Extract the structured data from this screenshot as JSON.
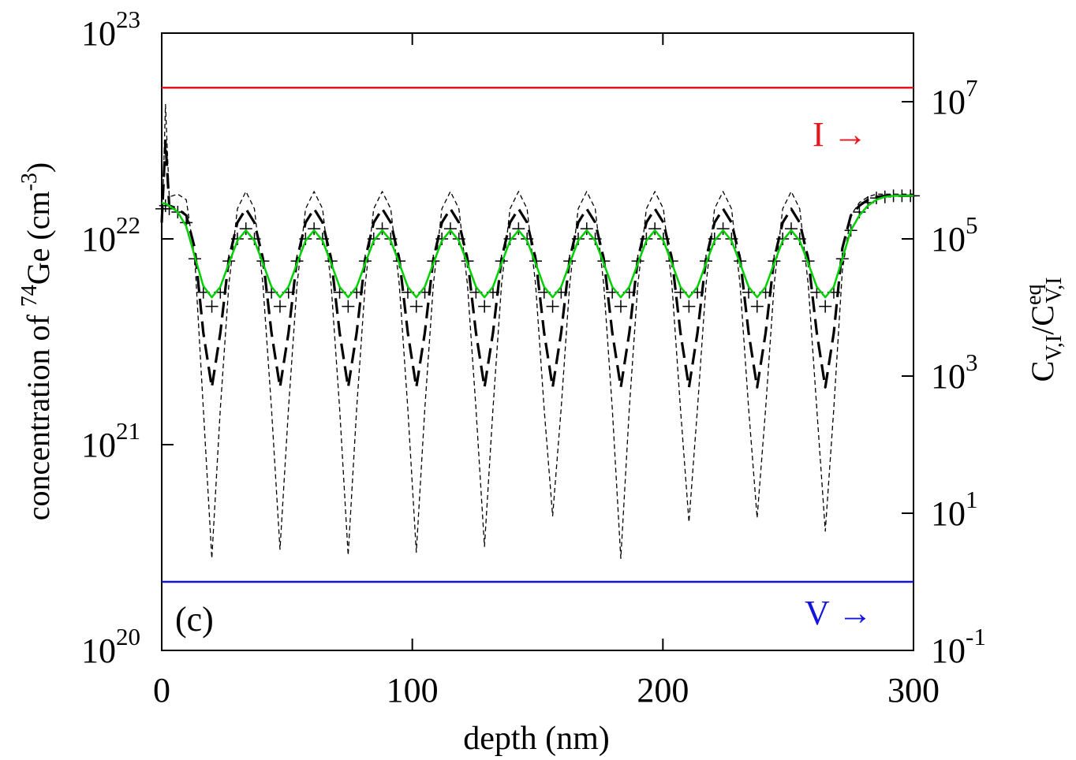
{
  "chart_data": {
    "type": "line",
    "x_label": "depth (nm)",
    "y_label": [
      {
        "text": "concentration of "
      },
      {
        "text": "74",
        "script": "sup"
      },
      {
        "text": "Ge (cm"
      },
      {
        "text": "-3",
        "script": "sup"
      },
      {
        "text": ")"
      }
    ],
    "y2_label": [
      {
        "text": "C"
      },
      {
        "text": "V,I",
        "script": "sub"
      },
      {
        "text": "/C"
      },
      {
        "text": "eq",
        "script": "sup"
      },
      {
        "text": "V,I",
        "script": "sub"
      }
    ],
    "xlim": [
      0,
      300
    ],
    "xticks": [
      0,
      100,
      200,
      300
    ],
    "ylim": [
      1e+20,
      1e+23
    ],
    "y_log": true,
    "yticks": [
      {
        "value": 1e+20,
        "label": "10",
        "exponent": "20"
      },
      {
        "value": 1e+21,
        "label": "10",
        "exponent": "21"
      },
      {
        "value": 1e+22,
        "label": "10",
        "exponent": "22"
      },
      {
        "value": 1e+23,
        "label": "10",
        "exponent": "23"
      }
    ],
    "y2lim": [
      0.1,
      100000000.0
    ],
    "y2_log": true,
    "y2ticks": [
      {
        "value": 0.1,
        "label": "10",
        "exponent": "-1"
      },
      {
        "value": 10,
        "label": "10",
        "exponent": "1"
      },
      {
        "value": 1000,
        "label": "10",
        "exponent": "3"
      },
      {
        "value": 100000,
        "label": "10",
        "exponent": "5"
      },
      {
        "value": 10000000,
        "label": "10",
        "exponent": "7"
      }
    ],
    "annotations": [
      {
        "text": "I →",
        "color": "#e8141c"
      },
      {
        "text": "V →",
        "color": "#1414e0"
      },
      {
        "text": "(c)",
        "color": "#000000"
      }
    ],
    "x": [
      0,
      1.5,
      3.0,
      6.4,
      9.8,
      13.2,
      16.6,
      20,
      23.4,
      26.8,
      30.2,
      33.6,
      37.0,
      40.4,
      43.8,
      47.2,
      50.6,
      54.0,
      57.4,
      60.8,
      64.2,
      67.6,
      71.0,
      74.4,
      77.8,
      81.2,
      84.6,
      88.0,
      91.4,
      94.8,
      98.2,
      101.6,
      105.0,
      108.4,
      111.8,
      115.2,
      118.6,
      122.0,
      125.4,
      128.8,
      132.2,
      135.6,
      139.0,
      142.4,
      145.8,
      149.2,
      152.6,
      156.0,
      159.4,
      162.8,
      166.2,
      169.6,
      173.0,
      176.4,
      179.8,
      183.2,
      186.6,
      190.0,
      193.4,
      196.8,
      200.2,
      203.6,
      207.0,
      210.4,
      213.8,
      217.2,
      220.6,
      224.0,
      227.4,
      230.8,
      234.2,
      237.6,
      241.0,
      244.4,
      247.8,
      251.2,
      254.6,
      258.0,
      261.4,
      264.8,
      268.2,
      271.6,
      275,
      278.4,
      281.8,
      285.2,
      288.6,
      292,
      295.4,
      298.8,
      300
    ],
    "series": [
      {
        "color": "#000000",
        "mark": "dash-short",
        "values": [
          1e+22,
          4.5e+22,
          1.6e+22,
          1.65e+22,
          1.55e+22,
          8e+21,
          1.5e+21,
          2.8e+20,
          1.5e+21,
          6e+21,
          1.4e+22,
          1.7e+22,
          1.4e+22,
          6e+21,
          1.5e+21,
          3.1e+20,
          1.5e+21,
          6e+21,
          1.4e+22,
          1.7e+22,
          1.4e+22,
          6e+21,
          1.5e+21,
          2.9e+20,
          1.5e+21,
          6e+21,
          1.4e+22,
          1.7e+22,
          1.4e+22,
          6e+21,
          1.5e+21,
          3e+20,
          1.5e+21,
          6e+21,
          1.4e+22,
          1.7e+22,
          1.4e+22,
          6e+21,
          1.5e+21,
          3.2e+20,
          1.5e+21,
          6e+21,
          1.4e+22,
          1.7e+22,
          1.4e+22,
          6e+21,
          1.5e+21,
          4.5e+20,
          1.5e+21,
          6e+21,
          1.4e+22,
          1.7e+22,
          1.4e+22,
          6e+21,
          1.5e+21,
          2.8e+20,
          1.5e+21,
          6e+21,
          1.4e+22,
          1.7e+22,
          1.4e+22,
          6e+21,
          1.5e+21,
          4.2e+20,
          1.5e+21,
          6e+21,
          1.4e+22,
          1.7e+22,
          1.4e+22,
          6e+21,
          1.5e+21,
          4.4e+20,
          1.5e+21,
          6e+21,
          1.4e+22,
          1.7e+22,
          1.4e+22,
          6e+21,
          1.5e+21,
          3.8e+20,
          1.5e+21,
          7e+21,
          1.3e+22,
          1.5e+22,
          1.6e+22,
          1.65e+22,
          1.65e+22,
          1.65e+22,
          1.65e+22,
          1.65e+22,
          1.65e+22
        ]
      },
      {
        "color": "#000000",
        "mark": "dash-long",
        "values": [
          1.2e+22,
          3e+22,
          1.45e+22,
          1.4e+22,
          1.3e+22,
          9e+21,
          3.5e+21,
          1.9e+21,
          3.5e+21,
          8e+21,
          1.2e+22,
          1.4e+22,
          1.2e+22,
          8e+21,
          3.5e+21,
          1.9e+21,
          3.5e+21,
          8e+21,
          1.2e+22,
          1.4e+22,
          1.2e+22,
          8e+21,
          3.5e+21,
          1.9e+21,
          3.5e+21,
          8e+21,
          1.2e+22,
          1.4e+22,
          1.2e+22,
          8e+21,
          3.5e+21,
          1.9e+21,
          3.5e+21,
          8e+21,
          1.2e+22,
          1.4e+22,
          1.2e+22,
          8e+21,
          3.5e+21,
          1.9e+21,
          3.5e+21,
          8e+21,
          1.2e+22,
          1.4e+22,
          1.2e+22,
          8e+21,
          3.5e+21,
          1.9e+21,
          3.5e+21,
          8e+21,
          1.2e+22,
          1.4e+22,
          1.2e+22,
          8e+21,
          3.5e+21,
          1.9e+21,
          3.5e+21,
          8e+21,
          1.2e+22,
          1.4e+22,
          1.2e+22,
          8e+21,
          3.5e+21,
          1.9e+21,
          3.5e+21,
          8e+21,
          1.2e+22,
          1.4e+22,
          1.2e+22,
          8e+21,
          3.5e+21,
          1.9e+21,
          3.5e+21,
          8e+21,
          1.2e+22,
          1.4e+22,
          1.2e+22,
          8e+21,
          3.5e+21,
          1.9e+21,
          3.5e+21,
          9e+21,
          1.3e+22,
          1.45e+22,
          1.55e+22,
          1.6e+22,
          1.62e+22,
          1.62e+22,
          1.62e+22,
          1.62e+22,
          1.62e+22
        ]
      },
      {
        "color": "#000000",
        "mark": "plus",
        "values": [
          1.4e+22,
          1.45e+22,
          1.4e+22,
          1.35e+22,
          1.2e+22,
          8e+21,
          5.5e+21,
          4.7e+21,
          5.5e+21,
          7.8e+21,
          1e+22,
          1.12e+22,
          1e+22,
          7.8e+21,
          5.5e+21,
          4.7e+21,
          5.5e+21,
          7.8e+21,
          1e+22,
          1.12e+22,
          1e+22,
          7.8e+21,
          5.5e+21,
          4.7e+21,
          5.5e+21,
          7.8e+21,
          1e+22,
          1.12e+22,
          1e+22,
          7.8e+21,
          5.5e+21,
          4.7e+21,
          5.5e+21,
          7.8e+21,
          1e+22,
          1.12e+22,
          1e+22,
          7.8e+21,
          5.5e+21,
          4.7e+21,
          5.5e+21,
          7.8e+21,
          1e+22,
          1.12e+22,
          1e+22,
          7.8e+21,
          5.5e+21,
          4.7e+21,
          5.5e+21,
          7.8e+21,
          1e+22,
          1.12e+22,
          1e+22,
          7.8e+21,
          5.5e+21,
          4.7e+21,
          5.5e+21,
          7.8e+21,
          1e+22,
          1.12e+22,
          1e+22,
          7.8e+21,
          5.5e+21,
          4.7e+21,
          5.5e+21,
          7.8e+21,
          1e+22,
          1.12e+22,
          1e+22,
          7.8e+21,
          5.5e+21,
          4.7e+21,
          5.5e+21,
          7.8e+21,
          1e+22,
          1.12e+22,
          1e+22,
          7.8e+21,
          5.5e+21,
          4.7e+21,
          5.5e+21,
          8e+21,
          1.1e+22,
          1.35e+22,
          1.5e+22,
          1.58e+22,
          1.6e+22,
          1.62e+22,
          1.62e+22,
          1.62e+22,
          1.62e+22
        ]
      },
      {
        "color": "#00d000",
        "mark": "line",
        "values": [
          1.5e+22,
          1.48e+22,
          1.45e+22,
          1.35e+22,
          1.15e+22,
          8.2e+21,
          5.9e+21,
          5.2e+21,
          5.85e+21,
          7.6e+21,
          9.8e+21,
          1.1e+22,
          9.8e+21,
          7.6e+21,
          5.85e+21,
          5.2e+21,
          5.85e+21,
          7.6e+21,
          9.8e+21,
          1.1e+22,
          9.8e+21,
          7.6e+21,
          5.85e+21,
          5.2e+21,
          5.85e+21,
          7.6e+21,
          9.8e+21,
          1.1e+22,
          9.8e+21,
          7.6e+21,
          5.85e+21,
          5.2e+21,
          5.85e+21,
          7.6e+21,
          9.8e+21,
          1.1e+22,
          9.8e+21,
          7.6e+21,
          5.85e+21,
          5.2e+21,
          5.85e+21,
          7.6e+21,
          9.8e+21,
          1.1e+22,
          9.8e+21,
          7.6e+21,
          5.85e+21,
          5.2e+21,
          5.85e+21,
          7.6e+21,
          9.8e+21,
          1.1e+22,
          9.8e+21,
          7.6e+21,
          5.85e+21,
          5.2e+21,
          5.85e+21,
          7.6e+21,
          9.8e+21,
          1.1e+22,
          9.8e+21,
          7.6e+21,
          5.85e+21,
          5.2e+21,
          5.85e+21,
          7.6e+21,
          9.8e+21,
          1.1e+22,
          9.8e+21,
          7.6e+21,
          5.85e+21,
          5.2e+21,
          5.85e+21,
          7.6e+21,
          9.8e+21,
          1.1e+22,
          9.8e+21,
          7.6e+21,
          5.85e+21,
          5.2e+21,
          5.85e+21,
          8e+21,
          1.1e+22,
          1.3e+22,
          1.45e+22,
          1.55e+22,
          1.6e+22,
          1.62e+22,
          1.62e+22,
          1.62e+22,
          1.62e+22
        ]
      },
      {
        "color": "#e8141c",
        "mark": "line",
        "axis": "y2",
        "x": [
          0,
          300
        ],
        "values": [
          16000000.0,
          16000000.0
        ]
      },
      {
        "color": "#1414e0",
        "mark": "line",
        "axis": "y2",
        "x": [
          0,
          300
        ],
        "values": [
          1,
          1
        ]
      }
    ]
  }
}
